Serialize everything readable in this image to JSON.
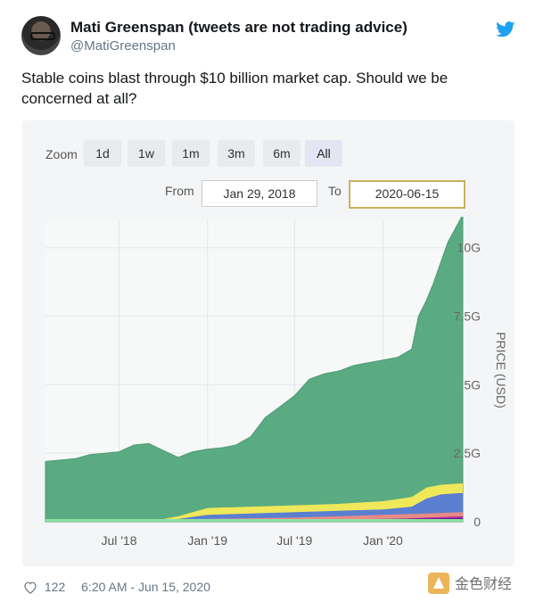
{
  "tweet": {
    "display_name": "Mati Greenspan (tweets are not trading advice)",
    "handle": "@MatiGreenspan",
    "text": "Stable coins blast through $10 billion market cap. Should we be concerned at all?",
    "likes": "122",
    "timestamp": "6:20 AM - Jun 15, 2020"
  },
  "icons": {
    "avatar": "avatar-photo",
    "twitter": "twitter-bird-icon",
    "heart": "heart-icon",
    "twitter_color": "#1da1f2"
  },
  "controls": {
    "zoom_label": "Zoom",
    "zoom_options": [
      "1d",
      "1w",
      "1m",
      "3m",
      "6m",
      "All"
    ],
    "zoom_selected": "All",
    "from_label": "From",
    "from_value": "Jan 29, 2018",
    "to_label": "To",
    "to_value": "2020-06-15"
  },
  "watermark": {
    "text": "金色财经"
  },
  "chart_data": {
    "type": "area",
    "title": "",
    "xlabel": "",
    "ylabel": "PRICE (USD)",
    "x_ticks": [
      "Jul '18",
      "Jan '19",
      "Jul '19",
      "Jan '20"
    ],
    "y_ticks": [
      "0",
      "2.5G",
      "5G",
      "7.5G",
      "10G"
    ],
    "ylim": [
      0,
      11000000000
    ],
    "xlim": [
      "2018-01-29",
      "2020-06-15"
    ],
    "grid": true,
    "stacked": true,
    "colors": {
      "total": "#5aab82",
      "yellow": "#efe85a",
      "blue": "#5b7fd0",
      "pink": "#e88a86",
      "navy": "#1f1b8a",
      "magenta": "#c02a9a",
      "light_green": "#8ee0a3"
    },
    "series": [
      {
        "color": "total",
        "x": [
          "2018-01-29",
          "2018-03-01",
          "2018-04-01",
          "2018-05-01",
          "2018-06-01",
          "2018-07-01",
          "2018-08-01",
          "2018-09-01",
          "2018-10-01",
          "2018-11-01",
          "2018-12-01",
          "2019-01-01",
          "2019-02-01",
          "2019-03-01",
          "2019-04-01",
          "2019-05-01",
          "2019-06-01",
          "2019-07-01",
          "2019-08-01",
          "2019-09-01",
          "2019-10-01",
          "2019-11-01",
          "2019-12-01",
          "2020-01-01",
          "2020-02-01",
          "2020-03-01",
          "2020-03-15",
          "2020-04-01",
          "2020-04-15",
          "2020-05-01",
          "2020-05-15",
          "2020-06-15"
        ],
        "values": [
          2200000000,
          2250000000,
          2300000000,
          2450000000,
          2500000000,
          2550000000,
          2800000000,
          2850000000,
          2600000000,
          2350000000,
          2550000000,
          2650000000,
          2700000000,
          2800000000,
          3100000000,
          3800000000,
          4200000000,
          4600000000,
          5200000000,
          5400000000,
          5500000000,
          5700000000,
          5800000000,
          5900000000,
          6000000000,
          6300000000,
          7500000000,
          8100000000,
          8700000000,
          9500000000,
          10200000000,
          11200000000
        ]
      },
      {
        "color": "yellow",
        "x": [
          "2018-01-29",
          "2018-09-01",
          "2018-11-01",
          "2019-01-01",
          "2019-04-01",
          "2019-07-01",
          "2019-10-01",
          "2020-01-01",
          "2020-03-01",
          "2020-04-01",
          "2020-05-01",
          "2020-06-15"
        ],
        "values": [
          0,
          0,
          200000000,
          500000000,
          550000000,
          600000000,
          650000000,
          750000000,
          900000000,
          1250000000,
          1350000000,
          1400000000
        ]
      },
      {
        "color": "blue",
        "x": [
          "2018-01-29",
          "2018-09-01",
          "2018-11-01",
          "2019-01-01",
          "2019-04-01",
          "2019-07-01",
          "2019-10-01",
          "2020-01-01",
          "2020-03-01",
          "2020-04-01",
          "2020-05-01",
          "2020-06-15"
        ],
        "values": [
          0,
          0,
          100000000,
          250000000,
          300000000,
          350000000,
          400000000,
          450000000,
          550000000,
          850000000,
          1000000000,
          1050000000
        ]
      },
      {
        "color": "pink",
        "x": [
          "2018-01-29",
          "2018-09-01",
          "2018-11-01",
          "2019-01-01",
          "2019-07-01",
          "2020-01-01",
          "2020-04-01",
          "2020-06-15"
        ],
        "values": [
          0,
          0,
          50000000,
          100000000,
          150000000,
          250000000,
          300000000,
          350000000
        ]
      },
      {
        "color": "magenta",
        "x": [
          "2018-01-29",
          "2019-01-01",
          "2019-07-01",
          "2020-01-01",
          "2020-04-01",
          "2020-06-15"
        ],
        "values": [
          0,
          20000000,
          40000000,
          80000000,
          150000000,
          200000000
        ]
      },
      {
        "color": "navy",
        "x": [
          "2018-01-29",
          "2018-09-01",
          "2018-11-01",
          "2019-07-01",
          "2020-01-01",
          "2020-06-15"
        ],
        "values": [
          0,
          20000000,
          60000000,
          80000000,
          100000000,
          120000000
        ]
      }
    ]
  }
}
